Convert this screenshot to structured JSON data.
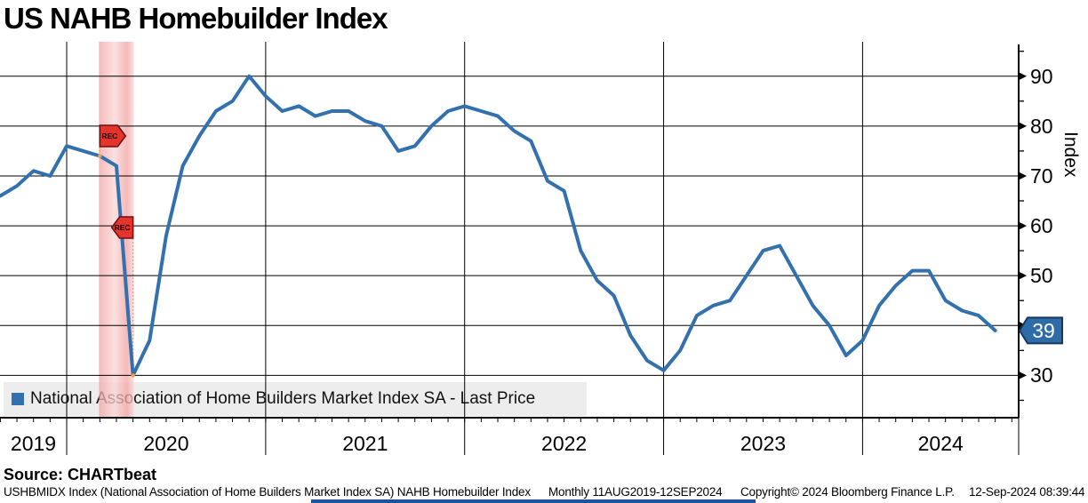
{
  "title": "US NAHB Homebuilder Index",
  "source_line": "Source: CHARTbeat",
  "y_axis_title": "Index",
  "legend": {
    "label": "National Association of Home Builders Market Index SA - Last Price"
  },
  "footer": {
    "ticker_info": "USHBMIDX Index (National Association of Home Builders Market Index SA) NAHB Homebuilder Index",
    "frequency_range": "Monthly 11AUG2019-12SEP2024",
    "copyright": "Copyright© 2024 Bloomberg Finance L.P.",
    "timestamp": "12-Sep-2024 08:39:44"
  },
  "colors": {
    "line": "#3371AE",
    "badge_fill": "#2E6CA8",
    "badge_border": "#17375E",
    "rec_flag": "#E5342C",
    "rec_flag_border": "#6B0E0E",
    "band_pink": "#F2A2A2",
    "band_pink_light": "#FAD6D6",
    "orange": "#EFA04A",
    "legend_bg": "#EDEDED",
    "grid": "#000000"
  },
  "chart_data": {
    "type": "line",
    "title": "US NAHB Homebuilder Index",
    "ylabel": "Index",
    "yticks": [
      30,
      40,
      50,
      60,
      70,
      80,
      90
    ],
    "yminor_step": 5,
    "ylim": [
      20.5,
      96.5
    ],
    "xticks": [
      "2019",
      "2020",
      "2021",
      "2022",
      "2023",
      "2024"
    ],
    "frequency": "monthly",
    "start_month": "2019-08",
    "end_month": "2024-08",
    "last_price": 39,
    "grid": true,
    "legend_position": "bottom-left",
    "series": [
      {
        "name": "National Association of Home Builders Market Index SA - Last Price",
        "values": [
          66,
          68,
          71,
          70,
          76,
          75,
          74,
          72,
          30,
          37,
          58,
          72,
          78,
          83,
          85,
          90,
          86,
          83,
          84,
          82,
          83,
          83,
          81,
          80,
          75,
          76,
          80,
          83,
          84,
          83,
          82,
          79,
          77,
          69,
          67,
          55,
          49,
          46,
          38,
          33,
          31,
          35,
          42,
          44,
          45,
          50,
          55,
          56,
          50,
          44,
          40,
          34,
          37,
          44,
          48,
          51,
          51,
          45,
          43,
          42,
          39
        ]
      }
    ],
    "recession_band": {
      "start": "2020-02",
      "end": "2020-04",
      "labels": [
        "REC",
        "REC"
      ]
    }
  }
}
